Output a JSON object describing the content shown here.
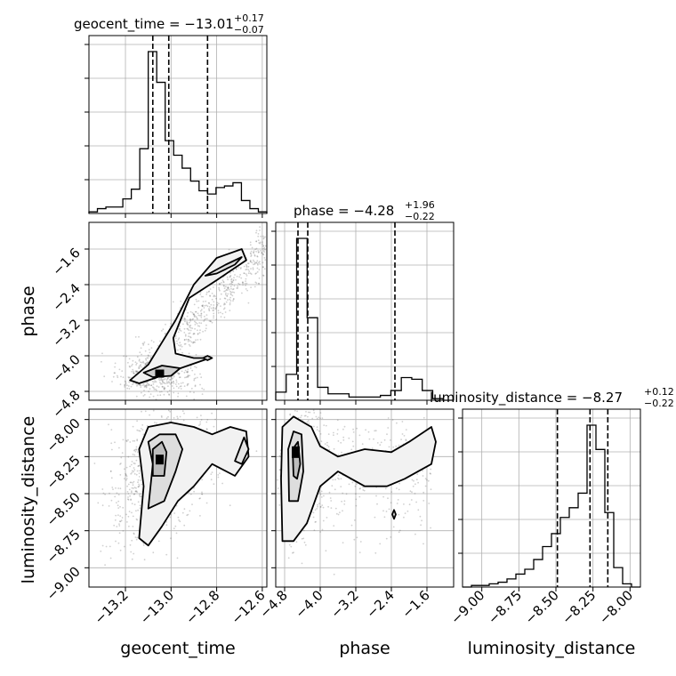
{
  "chart_data": {
    "type": "corner",
    "grid": true,
    "parameters": [
      {
        "name": "geocent_time",
        "axis_label": "geocent_time",
        "title_prefix": "geocent_time = ",
        "median": "−13.01",
        "plus": "+0.17",
        "minus": "−0.07",
        "range": [
          -13.36,
          -12.58
        ],
        "ticks": [
          -13.2,
          -13.0,
          -12.8,
          -12.6
        ],
        "tick_labels": [
          "−13.2",
          "−13.0",
          "−12.8",
          "−12.6"
        ],
        "quantiles": [
          -13.08,
          -13.01,
          -12.84
        ],
        "hist_counts": [
          1,
          3,
          4,
          4,
          9,
          15,
          40,
          100,
          81,
          45,
          36,
          28,
          20,
          14,
          12,
          16,
          17,
          19,
          8,
          3,
          1
        ]
      },
      {
        "name": "phase",
        "axis_label": "phase",
        "title_prefix": "phase = ",
        "median": "−4.28",
        "plus": "+1.96",
        "minus": "−0.22",
        "range": [
          -5.0,
          -1.0
        ],
        "ticks": [
          -4.8,
          -4.0,
          -3.2,
          -2.4,
          -1.6
        ],
        "tick_labels": [
          "−4.8",
          "−4.0",
          "−3.2",
          "−2.4",
          "−1.6"
        ],
        "quantiles": [
          -4.5,
          -4.28,
          -2.32
        ],
        "hist_counts": [
          5,
          16,
          100,
          51,
          8,
          4,
          4,
          2,
          2,
          2,
          3,
          6,
          14,
          13,
          6,
          1,
          0
        ]
      },
      {
        "name": "luminosity_distance",
        "axis_label": "luminosity_distance",
        "title_prefix": "luminosity_distance = ",
        "median": "−8.27",
        "plus": "+0.12",
        "minus": "−0.22",
        "range": [
          -9.13,
          -7.93
        ],
        "ticks": [
          -9.0,
          -8.75,
          -8.5,
          -8.25,
          -8.0
        ],
        "tick_labels": [
          "−9.00",
          "−8.75",
          "−8.50",
          "−8.25",
          "−8.00"
        ],
        "quantiles": [
          -8.49,
          -8.27,
          -8.15
        ],
        "hist_counts": [
          0,
          1,
          1,
          2,
          3,
          5,
          8,
          11,
          17,
          25,
          33,
          43,
          49,
          58,
          100,
          85,
          46,
          12,
          2,
          0
        ]
      }
    ]
  }
}
